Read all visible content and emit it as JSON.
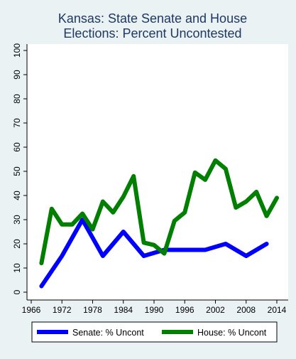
{
  "chart_data": {
    "type": "line",
    "title_lines": [
      "Kansas: State Senate and House",
      "Elections: Percent Uncontested"
    ],
    "xlabel": "",
    "ylabel": "",
    "xlim": [
      1966,
      2014
    ],
    "ylim": [
      0,
      100
    ],
    "x_ticks": [
      1966,
      1972,
      1978,
      1984,
      1990,
      1996,
      2002,
      2008,
      2014
    ],
    "y_ticks": [
      0,
      10,
      20,
      30,
      40,
      50,
      60,
      70,
      80,
      90,
      100
    ],
    "grid": false,
    "legend_position": "bottom",
    "series": [
      {
        "name": "Senate: % Uncont",
        "color": "#0000ff",
        "x": [
          1968,
          1972,
          1976,
          1980,
          1984,
          1988,
          1992,
          1996,
          2000,
          2004,
          2008,
          2012
        ],
        "y": [
          2.5,
          15,
          30,
          15,
          25,
          15,
          17.5,
          17.5,
          17.5,
          20,
          15,
          20
        ]
      },
      {
        "name": "House: % Uncont",
        "color": "#007f00",
        "x": [
          1968,
          1970,
          1972,
          1974,
          1976,
          1978,
          1980,
          1982,
          1984,
          1986,
          1988,
          1990,
          1992,
          1994,
          1996,
          1998,
          2000,
          2002,
          2004,
          2006,
          2008,
          2010,
          2012,
          2014
        ],
        "y": [
          12,
          34.5,
          28,
          28,
          32.5,
          26,
          37.5,
          33,
          39.5,
          48,
          20.5,
          19.5,
          16,
          29.5,
          33,
          49.5,
          46.5,
          54.5,
          51,
          35,
          37.5,
          41.5,
          31.5,
          39
        ]
      }
    ]
  }
}
